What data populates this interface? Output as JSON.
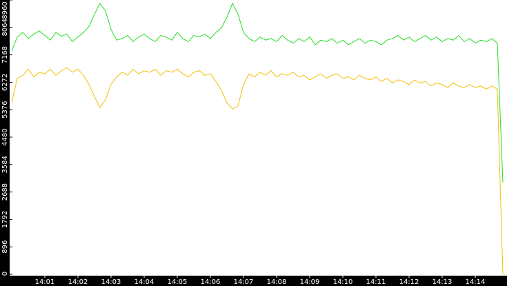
{
  "chart_data": {
    "type": "line",
    "categories": [
      null,
      null,
      null,
      null,
      null,
      null,
      "14:01",
      null,
      null,
      null,
      null,
      null,
      "14:02",
      null,
      null,
      null,
      null,
      null,
      "14:03",
      null,
      null,
      null,
      null,
      null,
      "14:04",
      null,
      null,
      null,
      null,
      null,
      "14:05",
      null,
      null,
      null,
      null,
      null,
      "14:06",
      null,
      null,
      null,
      null,
      null,
      "14:07",
      null,
      null,
      null,
      null,
      null,
      "14:08",
      null,
      null,
      null,
      null,
      null,
      "14:09",
      null,
      null,
      null,
      null,
      null,
      "14:10",
      null,
      null,
      null,
      null,
      null,
      "14:11",
      null,
      null,
      null,
      null,
      null,
      "14:12",
      null,
      null,
      null,
      null,
      null,
      "14:13",
      null,
      null,
      null,
      null,
      null,
      "14:14",
      null,
      null,
      null,
      null,
      null
    ],
    "series": [
      {
        "color": "#22dd22",
        "values": [
          7300,
          7750,
          7900,
          7700,
          7850,
          7950,
          7800,
          7650,
          7900,
          7780,
          7850,
          7600,
          7750,
          7900,
          8100,
          8500,
          8850,
          8600,
          8000,
          7650,
          7700,
          7800,
          7600,
          7750,
          7850,
          7700,
          7600,
          7800,
          7750,
          7650,
          7900,
          7700,
          7600,
          7800,
          7750,
          7850,
          7700,
          7900,
          8050,
          8400,
          8850,
          8500,
          7900,
          7700,
          7600,
          7750,
          7650,
          7700,
          7600,
          7800,
          7650,
          7550,
          7700,
          7600,
          7750,
          7500,
          7650,
          7600,
          7700,
          7550,
          7650,
          7500,
          7600,
          7700,
          7550,
          7650,
          7600,
          7500,
          7650,
          7700,
          7800,
          7650,
          7750,
          7600,
          7700,
          7800,
          7650,
          7750,
          7600,
          7700,
          7650,
          7800,
          7600,
          7700,
          7550,
          7650,
          7600,
          7700,
          7550,
          3000
        ]
      },
      {
        "color": "#f0c000",
        "values": [
          5600,
          6400,
          6500,
          6700,
          6450,
          6600,
          6550,
          6700,
          6500,
          6650,
          6750,
          6600,
          6700,
          6500,
          6200,
          5800,
          5450,
          5700,
          6200,
          6450,
          6600,
          6500,
          6700,
          6550,
          6650,
          6600,
          6700,
          6500,
          6650,
          6600,
          6700,
          6550,
          6450,
          6600,
          6650,
          6500,
          6550,
          6300,
          6000,
          5600,
          5400,
          5500,
          6200,
          6550,
          6450,
          6600,
          6500,
          6650,
          6450,
          6550,
          6500,
          6600,
          6450,
          6500,
          6350,
          6450,
          6550,
          6400,
          6500,
          6550,
          6400,
          6450,
          6350,
          6500,
          6400,
          6350,
          6450,
          6300,
          6400,
          6250,
          6350,
          6300,
          6200,
          6350,
          6250,
          6300,
          6150,
          6250,
          6200,
          6100,
          6250,
          6150,
          6100,
          6200,
          6100,
          6150,
          6050,
          6150,
          6050,
          0
        ]
      }
    ],
    "ylim": [
      0,
      8960
    ],
    "yticks": [
      0,
      896,
      1792,
      2688,
      3584,
      4480,
      5376,
      6272,
      7168,
      8064,
      8960
    ]
  }
}
